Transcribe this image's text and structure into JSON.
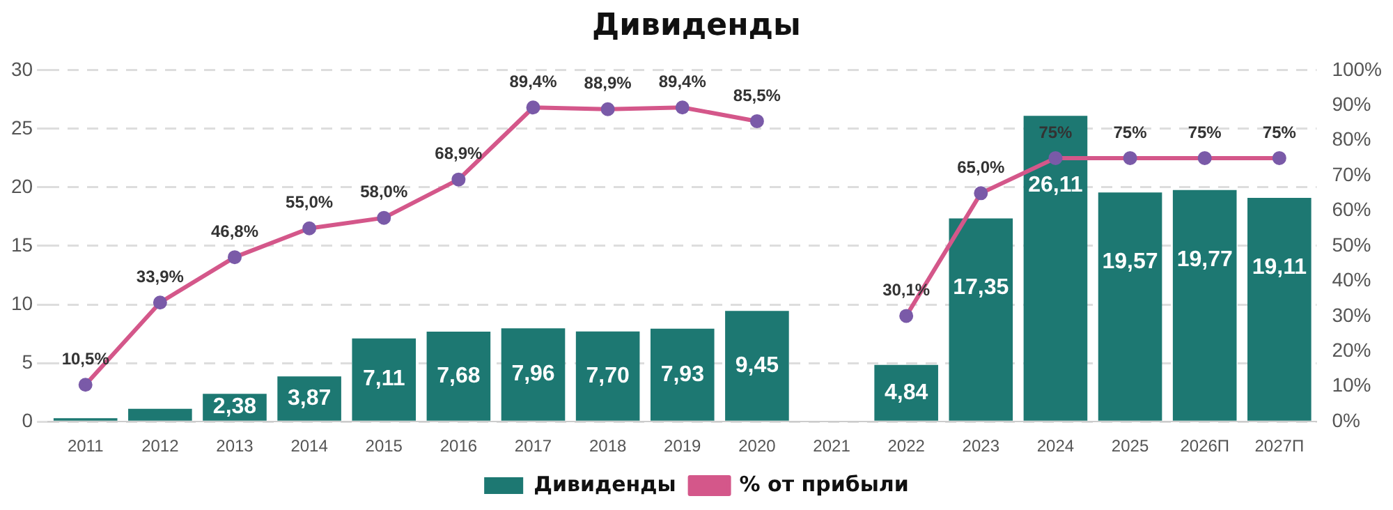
{
  "chart_data": {
    "type": "bar",
    "title": "Дивиденды",
    "categories": [
      "2011",
      "2012",
      "2013",
      "2014",
      "2015",
      "2016",
      "2017",
      "2018",
      "2019",
      "2020",
      "2021",
      "2022",
      "2023",
      "2024",
      "2025",
      "2026П",
      "2027П"
    ],
    "series": [
      {
        "name": "Дивиденды",
        "color": "#1d7872",
        "values": [
          0.3,
          1.1,
          2.38,
          3.87,
          7.11,
          7.68,
          7.96,
          7.7,
          7.93,
          9.45,
          null,
          4.84,
          17.35,
          26.11,
          19.57,
          19.77,
          19.11
        ],
        "value_labels": [
          null,
          null,
          "2,38",
          "3,87",
          "7,11",
          "7,68",
          "7,96",
          "7,70",
          "7,93",
          "9,45",
          null,
          "4,84",
          "17,35",
          "26,11",
          "19,57",
          "19,77",
          "19,11"
        ]
      },
      {
        "name": "% от прибыли",
        "type": "line",
        "axis": "y2",
        "color": "#d4578a",
        "marker": "circle",
        "values": [
          10.5,
          33.9,
          46.8,
          55.0,
          58.0,
          68.9,
          89.4,
          88.9,
          89.4,
          85.5,
          null,
          30.1,
          65.0,
          75,
          75,
          75,
          75
        ],
        "value_labels": [
          "10,5%",
          "33,9%",
          "46,8%",
          "55,0%",
          "58,0%",
          "68,9%",
          "89,4%",
          "88,9%",
          "89,4%",
          "85,5%",
          null,
          "30,1%",
          "65,0%",
          "75%",
          "75%",
          "75%",
          "75%"
        ]
      }
    ],
    "ylim": [
      0,
      30
    ],
    "yticks": [
      0,
      5,
      10,
      15,
      20,
      25,
      30
    ],
    "y2lim": [
      0,
      100
    ],
    "y2ticks": [
      {
        "value": 0,
        "label": "0%"
      },
      {
        "value": 10,
        "label": "10%"
      },
      {
        "value": 20,
        "label": "20%"
      },
      {
        "value": 30,
        "label": "30%"
      },
      {
        "value": 40,
        "label": "40%"
      },
      {
        "value": 50,
        "label": "50%"
      },
      {
        "value": 60,
        "label": "60%"
      },
      {
        "value": 70,
        "label": "70%"
      },
      {
        "value": 80,
        "label": "80%"
      },
      {
        "value": 90,
        "label": "90%"
      },
      {
        "value": 100,
        "label": "100%"
      }
    ],
    "grid": "y",
    "legend": "bottom"
  }
}
